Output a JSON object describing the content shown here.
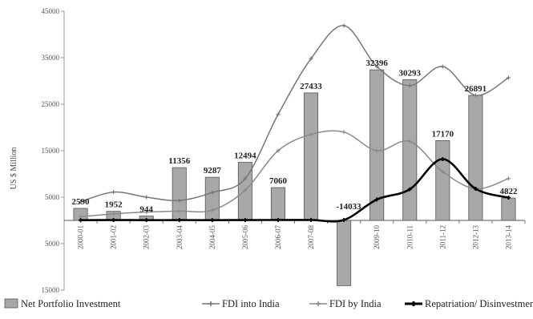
{
  "chart_data": {
    "type": "bar+line",
    "title": "",
    "ylabel": "US $ Million",
    "ylim": [
      -15000,
      45000
    ],
    "yticks": [
      -15000,
      -5000,
      5000,
      15000,
      25000,
      35000,
      45000
    ],
    "ytick_labels": [
      "15000",
      "5000",
      "5000",
      "15000",
      "25000",
      "35000",
      "45000"
    ],
    "categories": [
      "2000-01",
      "2001-02",
      "2002-03",
      "2003-04",
      "2004-05",
      "2005-06",
      "2006-07",
      "2007-08",
      "2008-09",
      "2009-10",
      "2010-11",
      "2011-12",
      "2012-13",
      "2013-14"
    ],
    "x_tick_labels": [
      "2000-01",
      "2001-02",
      "2002-03",
      "2003-04",
      "2004-05",
      "2005-06",
      "2006-07",
      "2007-08",
      "2008-09",
      "2009-10",
      "2010-11",
      "2011-12",
      "2012-13",
      "2013-14"
    ],
    "bar_series": {
      "name": "Net Portfolio Investment",
      "values": [
        2590,
        1952,
        944,
        11356,
        9287,
        12494,
        7060,
        27433,
        -14033,
        32396,
        30293,
        17170,
        26891,
        4822
      ],
      "labels": [
        "2590",
        "1952",
        "944",
        "11356",
        "9287",
        "12494",
        "7060",
        "27433",
        "-14033",
        "32396",
        "30293",
        "17170",
        "26891",
        "4822"
      ],
      "color": "#a8a8a8"
    },
    "line_series": [
      {
        "name": "FDI into India",
        "values": [
          4000,
          6100,
          5000,
          4300,
          6000,
          9000,
          22800,
          34800,
          41900,
          33100,
          29000,
          33100,
          26900,
          30700
        ],
        "color": "#777777"
      },
      {
        "name": "FDI by India",
        "values": [
          800,
          1400,
          1800,
          2000,
          2200,
          6500,
          15000,
          18500,
          19000,
          15000,
          17000,
          10500,
          6800,
          9000
        ],
        "color": "#8a8a8a"
      },
      {
        "name": "Repatriation/ Disinvestmen",
        "values": [
          50,
          80,
          60,
          70,
          60,
          80,
          90,
          100,
          100,
          4500,
          6700,
          13200,
          6800,
          4900
        ],
        "color": "#000000"
      }
    ],
    "legend": {
      "position": "bottom",
      "entries": [
        "Net Portfolio Investment",
        "FDI into India",
        "FDI by India",
        "Repatriation/ Disinvestmen"
      ]
    },
    "grid": false
  }
}
